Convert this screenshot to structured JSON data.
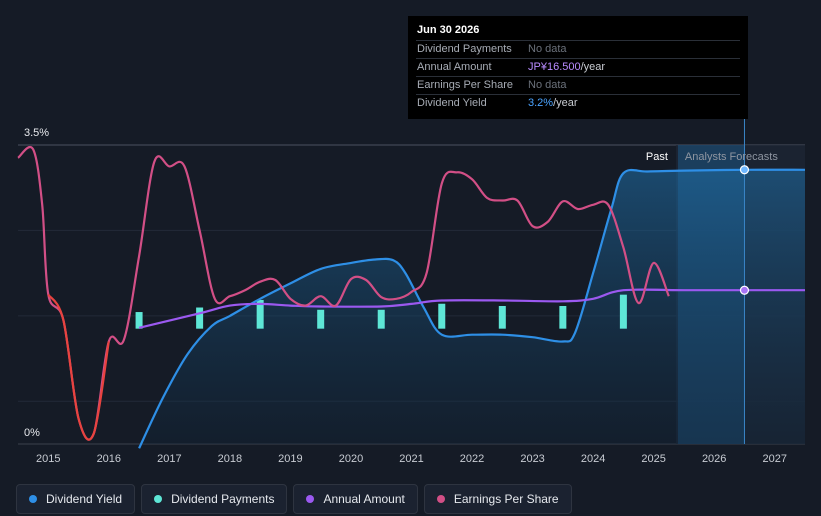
{
  "tooltip": {
    "date": "Jun 30 2026",
    "rows": [
      {
        "key": "Dividend Payments",
        "value": "No data"
      },
      {
        "key": "Annual Amount",
        "value": "JP¥16.500",
        "unit": "/year"
      },
      {
        "key": "Earnings Per Share",
        "value": "No data"
      },
      {
        "key": "Dividend Yield",
        "value": "3.2%",
        "unit": "/year"
      }
    ]
  },
  "regions": {
    "past": "Past",
    "forecast": "Analysts Forecasts"
  },
  "legend": [
    {
      "label": "Dividend Yield",
      "color": "#2e8fe6"
    },
    {
      "label": "Dividend Payments",
      "color": "#5ee6d6"
    },
    {
      "label": "Annual Amount",
      "color": "#9b59f0"
    },
    {
      "label": "Earnings Per Share",
      "color": "#d24f86"
    }
  ],
  "chart_data": {
    "type": "line",
    "title": "",
    "xlabel": "",
    "ylabel": "",
    "x_ticks": [
      "2015",
      "2016",
      "2017",
      "2018",
      "2019",
      "2020",
      "2021",
      "2022",
      "2023",
      "2024",
      "2025",
      "2026",
      "2027"
    ],
    "y_tick_labels": [
      "3.5%",
      "0%"
    ],
    "xlim": [
      2014.5,
      2027.5
    ],
    "ylim": [
      0,
      3.5
    ],
    "past_end": 2025.5,
    "highlight": 2026.5,
    "series": [
      {
        "name": "Dividend Yield",
        "color": "#2e8fe6",
        "points": [
          [
            2016.5,
            -0.05
          ],
          [
            2016.9,
            0.55
          ],
          [
            2017.3,
            1.05
          ],
          [
            2017.7,
            1.38
          ],
          [
            2018.0,
            1.5
          ],
          [
            2018.5,
            1.7
          ],
          [
            2019.0,
            1.88
          ],
          [
            2019.5,
            2.05
          ],
          [
            2020.0,
            2.12
          ],
          [
            2020.4,
            2.16
          ],
          [
            2020.7,
            2.15
          ],
          [
            2020.9,
            2.0
          ],
          [
            2021.2,
            1.6
          ],
          [
            2021.5,
            1.28
          ],
          [
            2022.0,
            1.28
          ],
          [
            2022.5,
            1.28
          ],
          [
            2023.0,
            1.25
          ],
          [
            2023.5,
            1.2
          ],
          [
            2023.7,
            1.3
          ],
          [
            2024.0,
            2.0
          ],
          [
            2024.3,
            2.75
          ],
          [
            2024.5,
            3.17
          ],
          [
            2024.9,
            3.19
          ],
          [
            2025.5,
            3.2
          ],
          [
            2026.5,
            3.21
          ],
          [
            2027.5,
            3.21
          ]
        ]
      },
      {
        "name": "Annual Amount",
        "color": "#9b59f0",
        "points": [
          [
            2016.5,
            1.36
          ],
          [
            2017.5,
            1.53
          ],
          [
            2018.0,
            1.62
          ],
          [
            2018.5,
            1.64
          ],
          [
            2019.0,
            1.62
          ],
          [
            2019.5,
            1.61
          ],
          [
            2020.5,
            1.61
          ],
          [
            2021.0,
            1.64
          ],
          [
            2021.5,
            1.68
          ],
          [
            2022.5,
            1.68
          ],
          [
            2023.5,
            1.67
          ],
          [
            2024.0,
            1.7
          ],
          [
            2024.5,
            1.8
          ],
          [
            2025.5,
            1.8
          ],
          [
            2026.5,
            1.8
          ],
          [
            2027.5,
            1.8
          ]
        ]
      },
      {
        "name": "Earnings Per Share",
        "color": "#d24f86",
        "points": [
          [
            2014.5,
            3.35
          ],
          [
            2014.75,
            3.45
          ],
          [
            2014.9,
            2.8
          ],
          [
            2015.0,
            1.75
          ],
          [
            2015.25,
            1.45
          ],
          [
            2015.5,
            0.3
          ],
          [
            2015.75,
            0.12
          ],
          [
            2016.0,
            1.2
          ],
          [
            2016.25,
            1.22
          ],
          [
            2016.5,
            2.2
          ],
          [
            2016.75,
            3.3
          ],
          [
            2017.0,
            3.25
          ],
          [
            2017.25,
            3.25
          ],
          [
            2017.5,
            2.5
          ],
          [
            2017.75,
            1.7
          ],
          [
            2018.0,
            1.73
          ],
          [
            2018.25,
            1.8
          ],
          [
            2018.5,
            1.9
          ],
          [
            2018.75,
            1.92
          ],
          [
            2019.0,
            1.7
          ],
          [
            2019.25,
            1.62
          ],
          [
            2019.5,
            1.73
          ],
          [
            2019.75,
            1.62
          ],
          [
            2020.0,
            1.93
          ],
          [
            2020.25,
            1.92
          ],
          [
            2020.5,
            1.72
          ],
          [
            2020.75,
            1.7
          ],
          [
            2021.0,
            1.78
          ],
          [
            2021.25,
            2.0
          ],
          [
            2021.5,
            3.05
          ],
          [
            2021.75,
            3.18
          ],
          [
            2022.0,
            3.1
          ],
          [
            2022.25,
            2.88
          ],
          [
            2022.5,
            2.85
          ],
          [
            2022.75,
            2.85
          ],
          [
            2023.0,
            2.55
          ],
          [
            2023.25,
            2.6
          ],
          [
            2023.5,
            2.84
          ],
          [
            2023.75,
            2.75
          ],
          [
            2024.0,
            2.8
          ],
          [
            2024.25,
            2.8
          ],
          [
            2024.5,
            2.3
          ],
          [
            2024.75,
            1.65
          ],
          [
            2025.0,
            2.12
          ],
          [
            2025.25,
            1.73
          ]
        ]
      },
      {
        "name": "Dividend Payments",
        "color": "#5ee6d6",
        "type": "bar",
        "points": [
          [
            2016.5,
            0.22
          ],
          [
            2017.5,
            0.28
          ],
          [
            2018.5,
            0.38
          ],
          [
            2019.5,
            0.25
          ],
          [
            2020.5,
            0.25
          ],
          [
            2021.5,
            0.33
          ],
          [
            2022.5,
            0.3
          ],
          [
            2023.5,
            0.3
          ],
          [
            2024.5,
            0.45
          ]
        ]
      }
    ]
  }
}
